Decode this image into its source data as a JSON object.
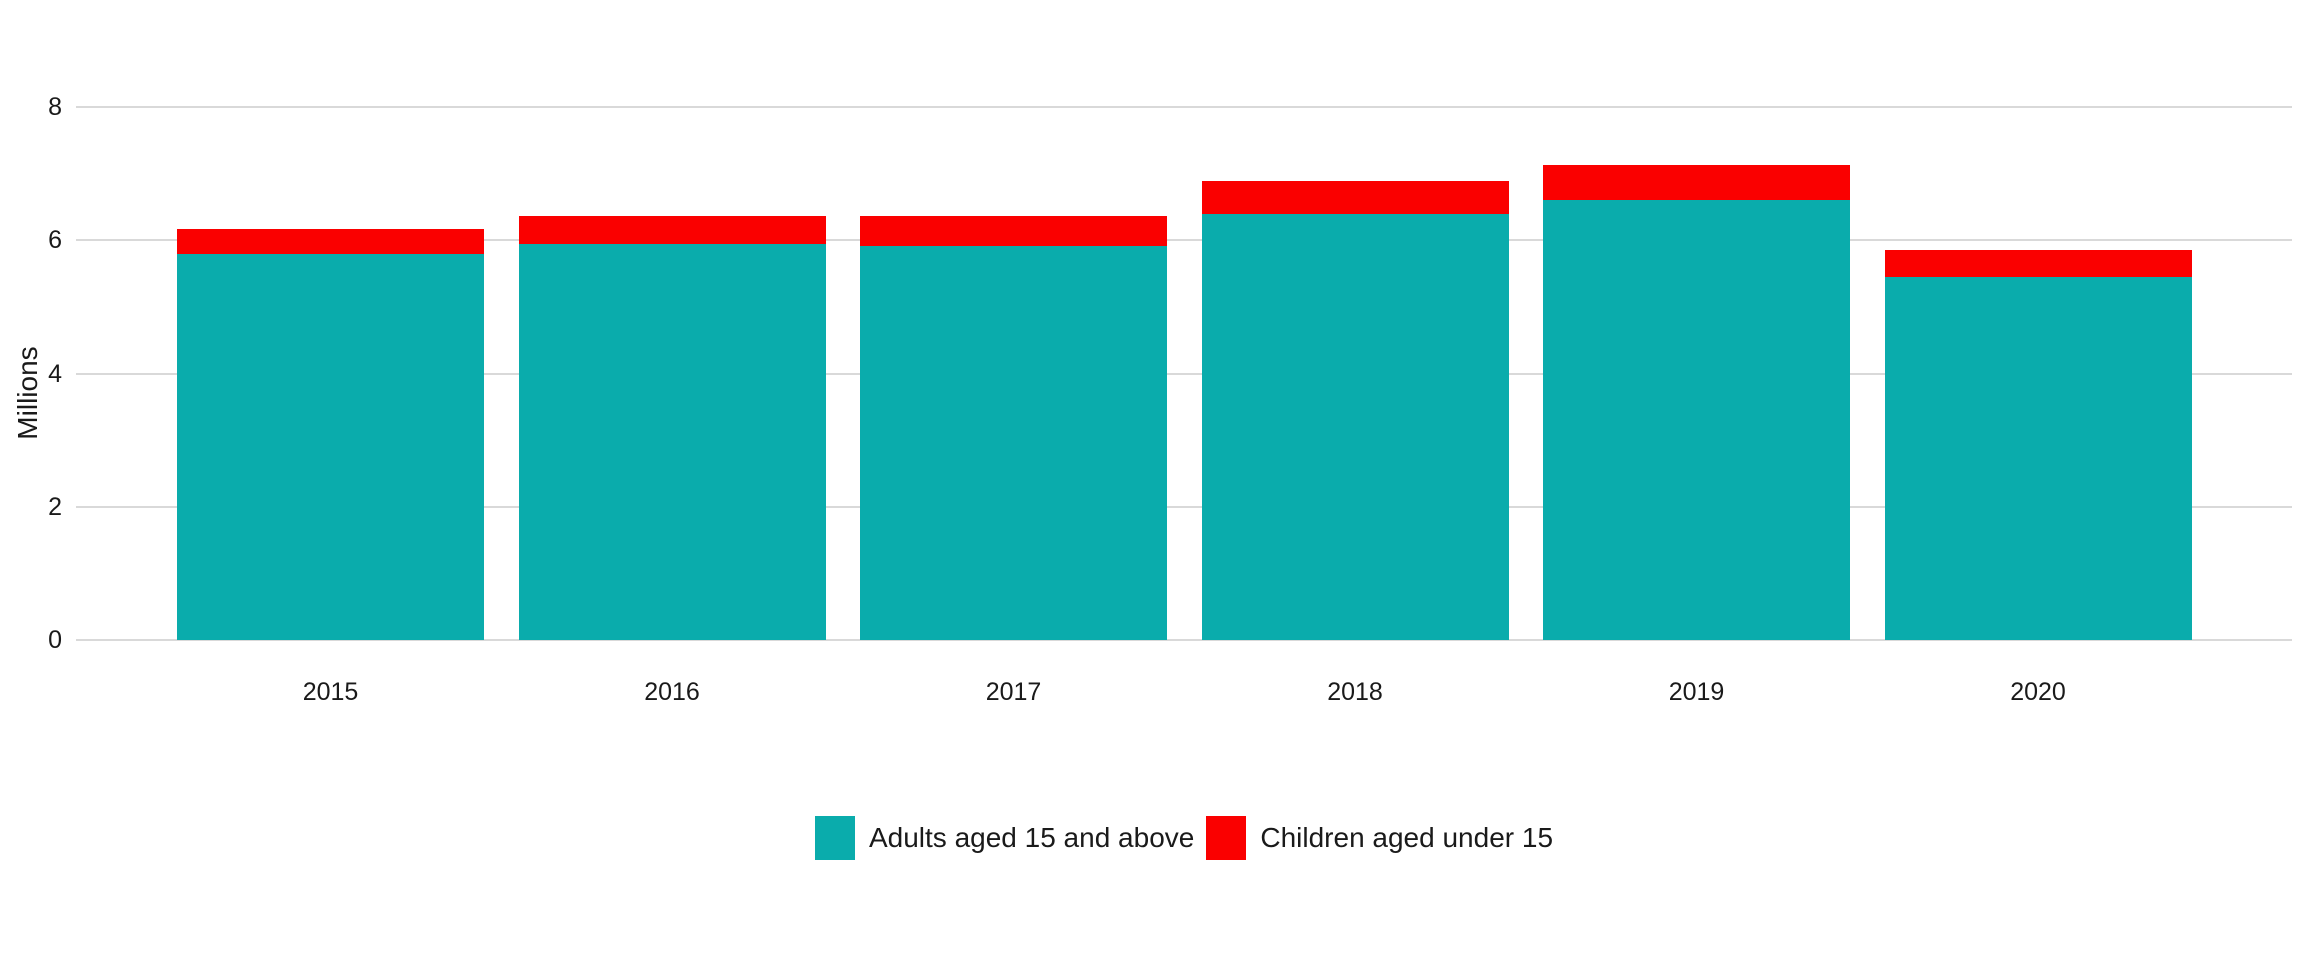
{
  "chart_data": {
    "type": "bar",
    "stacked": true,
    "title": "",
    "xlabel": "",
    "ylabel": "Millions",
    "categories": [
      "2015",
      "2016",
      "2017",
      "2018",
      "2019",
      "2020"
    ],
    "series": [
      {
        "name": "Adults aged 15 and above",
        "color": "#0aacac",
        "values": [
          5.8,
          5.94,
          5.92,
          6.39,
          6.61,
          5.45
        ]
      },
      {
        "name": "Children aged under 15",
        "color": "#fa0000",
        "values": [
          0.37,
          0.43,
          0.45,
          0.5,
          0.52,
          0.4
        ]
      }
    ],
    "totals": [
      6.17,
      6.37,
      6.37,
      6.89,
      7.13,
      5.85
    ],
    "ylim": [
      0,
      8
    ],
    "yticks": [
      0,
      2,
      4,
      6,
      8
    ],
    "grid": true,
    "gridline_color": "#d9d9d9",
    "text_color": "#1a1a1a",
    "background_color": "#ffffff",
    "legend_position": "bottom"
  }
}
